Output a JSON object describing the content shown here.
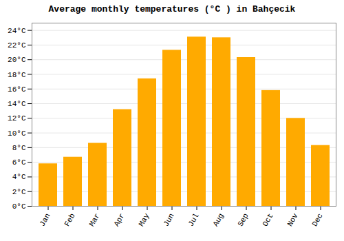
{
  "chart_data": {
    "type": "bar",
    "title": "Average monthly temperatures (°C ) in Bahçecik",
    "categories": [
      "Jan",
      "Feb",
      "Mar",
      "Apr",
      "May",
      "Jun",
      "Jul",
      "Aug",
      "Sep",
      "Oct",
      "Nov",
      "Dec"
    ],
    "values": [
      5.8,
      6.7,
      8.6,
      13.2,
      17.4,
      21.3,
      23.1,
      23.0,
      20.3,
      15.8,
      12.0,
      8.3
    ],
    "color": "#FFAA00",
    "ylim": [
      0,
      25
    ],
    "yticks": [
      {
        "value": 0,
        "label": "0°C"
      },
      {
        "value": 2,
        "label": "2°C"
      },
      {
        "value": 4,
        "label": "4°C"
      },
      {
        "value": 6,
        "label": "6°C"
      },
      {
        "value": 8,
        "label": "8°C"
      },
      {
        "value": 10,
        "label": "10°C"
      },
      {
        "value": 12,
        "label": "12°C"
      },
      {
        "value": 14,
        "label": "14°C"
      },
      {
        "value": 16,
        "label": "16°C"
      },
      {
        "value": 18,
        "label": "18°C"
      },
      {
        "value": 20,
        "label": "20°C"
      },
      {
        "value": 22,
        "label": "22°C"
      },
      {
        "value": 24,
        "label": "24°C"
      }
    ],
    "grid": true
  }
}
